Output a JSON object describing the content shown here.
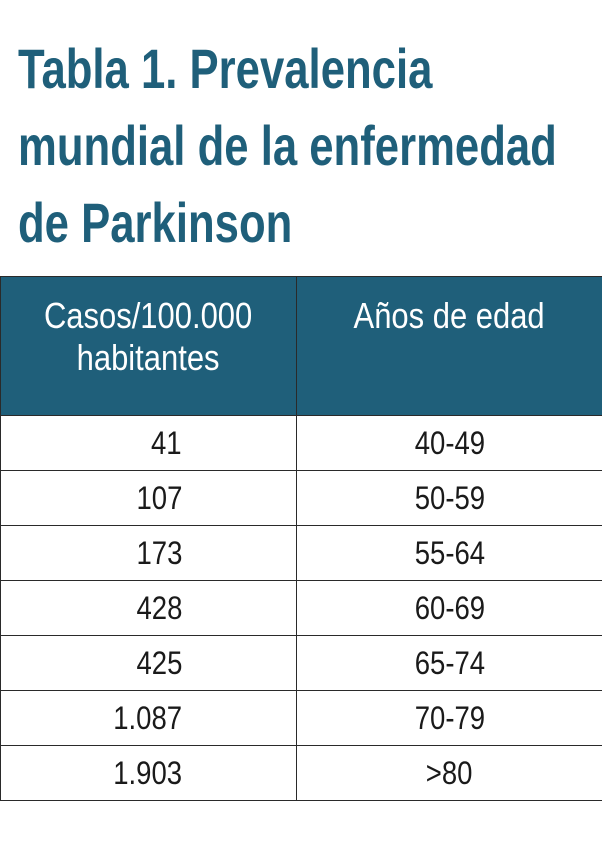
{
  "title": {
    "line1": "Tabla 1. Prevalencia",
    "line2": "mundial de la enfermedad",
    "line3": "de Parkinson"
  },
  "table": {
    "headers": {
      "cases_line1": "Casos/100.000",
      "cases_line2": "habitantes",
      "age": "Años de edad"
    },
    "rows": [
      {
        "cases": "41",
        "age": "40-49"
      },
      {
        "cases": "107",
        "age": "50-59"
      },
      {
        "cases": "173",
        "age": "55-64"
      },
      {
        "cases": "428",
        "age": "60-69"
      },
      {
        "cases": "425",
        "age": "65-74"
      },
      {
        "cases": "1.087",
        "age": "70-79"
      },
      {
        "cases": "1.903",
        "age": ">80"
      }
    ]
  },
  "colors": {
    "accent": "#1f5f7a",
    "header_text": "#ffffff",
    "body_text": "#1a1a1a",
    "border": "#2a2a2a"
  }
}
